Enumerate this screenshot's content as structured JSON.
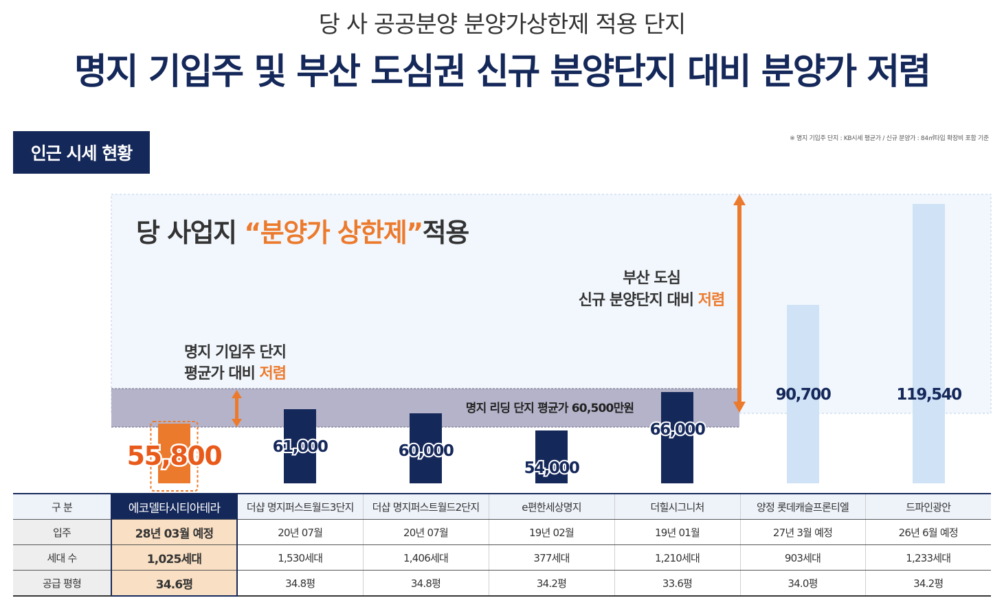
{
  "header": {
    "subtitle": "당 사 공공분양 분양가상한제 적용 단지",
    "title": "명지 기입주 및 부산 도심권 신규 분양단지 대비 분양가 저렴"
  },
  "section_badge": "인근 시세 현황",
  "footnote": "※ 명지 기입주 단지 : KB시세 평균가 / 신규 분양가 : 84㎡타입 확장비 포함 기준",
  "annotations": {
    "cap_prefix": "당 사업지 ",
    "cap_highlight": "“분양가 상한제”",
    "cap_suffix": "적용",
    "busan_line1": "부산 도심",
    "busan_line2_prefix": "신규 분양단지 대비 ",
    "busan_line2_highlight": "저렴",
    "myeongji_line1": "명지 기입주 단지",
    "myeongji_line2_prefix": "평균가 대비 ",
    "myeongji_line2_highlight": "저렴",
    "band_label": "명지 리딩 단지 평균가 60,500만원"
  },
  "colors": {
    "navy": "#15285a",
    "orange": "#ec7a2d",
    "orange_text": "#e85a1a",
    "light_blue": "#cfe2f6",
    "band": "#b4b3c9",
    "panel": "#f2f7fd"
  },
  "chart_data": {
    "type": "bar",
    "categories": [
      "에코델타시티아테라",
      "더샵 명지퍼스트월드3단지",
      "더샵 명지퍼스트월드2단지",
      "e편한세상명지",
      "더힐시그니처",
      "양정 롯데캐슬프론티엘",
      "드파인광안"
    ],
    "values": [
      55800,
      61000,
      60000,
      54000,
      66000,
      90700,
      119540
    ],
    "labels": [
      "55,800",
      "61,000",
      "60,000",
      "54,000",
      "66,000",
      "90,700",
      "119,540"
    ],
    "groups": [
      "subject",
      "existing",
      "existing",
      "existing",
      "existing",
      "new",
      "new"
    ],
    "reference_band": 60500,
    "ylabel": "",
    "xlabel": ""
  },
  "table": {
    "row_headers": [
      "구 분",
      "입주",
      "세대 수",
      "공급 평형"
    ],
    "rows": [
      [
        "에코델타시티아테라",
        "더샵 명지퍼스트월드3단지",
        "더샵 명지퍼스트월드2단지",
        "e편한세상명지",
        "더힐시그니처",
        "양정 롯데캐슬프론티엘",
        "드파인광안"
      ],
      [
        "28년 03월 예정",
        "20년 07월",
        "20년 07월",
        "19년 02월",
        "19년 01월",
        "27년 3월 예정",
        "26년 6월 예정"
      ],
      [
        "1,025세대",
        "1,530세대",
        "1,406세대",
        "377세대",
        "1,210세대",
        "903세대",
        "1,233세대"
      ],
      [
        "34.6평",
        "34.8평",
        "34.8평",
        "34.2평",
        "33.6평",
        "34.0평",
        "34.2평"
      ]
    ]
  }
}
